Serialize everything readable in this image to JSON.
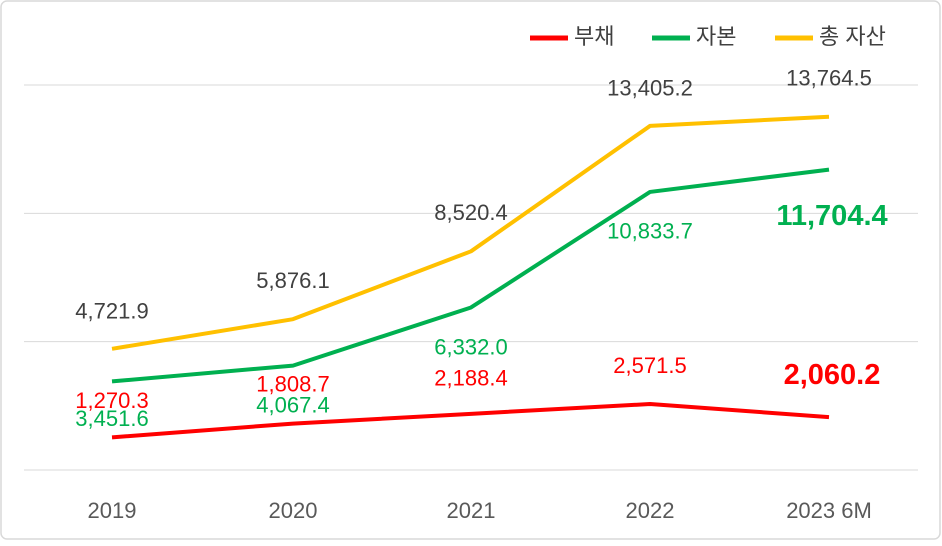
{
  "chart_data": {
    "type": "line",
    "categories": [
      "2019",
      "2020",
      "2021",
      "2022",
      "2023 6M"
    ],
    "series": [
      {
        "name": "부채",
        "color": "#ff0000",
        "values": [
          1270.3,
          1808.7,
          2188.4,
          2571.5,
          2060.2
        ],
        "value_labels": [
          "1,270.3",
          "1,808.7",
          "2,188.4",
          "2,571.5",
          "2,060.2"
        ]
      },
      {
        "name": "자본",
        "color": "#00b050",
        "values": [
          3451.6,
          4067.4,
          6332.0,
          10833.7,
          11704.4
        ],
        "value_labels": [
          "3,451.6",
          "4,067.4",
          "6,332.0",
          "10,833.7",
          "11,704.4"
        ]
      },
      {
        "name": "총 자산",
        "color": "#ffc000",
        "values": [
          4721.9,
          5876.1,
          8520.4,
          13405.2,
          13764.5
        ],
        "value_labels": [
          "4,721.9",
          "5,876.1",
          "8,520.4",
          "13,405.2",
          "13,764.5"
        ]
      }
    ],
    "ylim": [
      0,
      15000
    ],
    "yticks": [
      0,
      5000,
      10000,
      15000
    ],
    "grid": true,
    "legend": "top-right"
  }
}
